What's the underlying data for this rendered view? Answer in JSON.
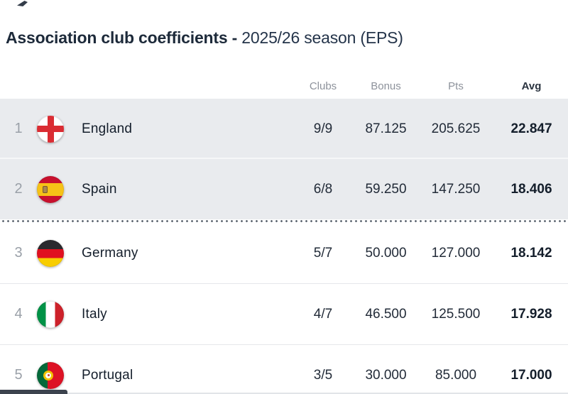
{
  "title": {
    "main": "Association club coefficients -",
    "season": "2025/26 season (EPS)"
  },
  "table": {
    "headers": [
      "Clubs",
      "Bonus",
      "Pts",
      "Avg"
    ],
    "rows": [
      {
        "rank": "1",
        "country": "England",
        "flag": "england-flag-icon",
        "clubs": "9/9",
        "bonus": "87.125",
        "pts": "205.625",
        "avg": "22.847",
        "highlighted": true
      },
      {
        "rank": "2",
        "country": "Spain",
        "flag": "spain-flag-icon",
        "clubs": "6/8",
        "bonus": "59.250",
        "pts": "147.250",
        "avg": "18.406",
        "highlighted": true
      },
      {
        "rank": "3",
        "country": "Germany",
        "flag": "germany-flag-icon",
        "clubs": "5/7",
        "bonus": "50.000",
        "pts": "127.000",
        "avg": "18.142",
        "highlighted": false
      },
      {
        "rank": "4",
        "country": "Italy",
        "flag": "italy-flag-icon",
        "clubs": "4/7",
        "bonus": "46.500",
        "pts": "125.500",
        "avg": "17.928",
        "highlighted": false
      },
      {
        "rank": "5",
        "country": "Portugal",
        "flag": "portugal-flag-icon",
        "clubs": "3/5",
        "bonus": "30.000",
        "pts": "85.000",
        "avg": "17.000",
        "highlighted": false
      }
    ],
    "cutoff_after_rank": "2"
  },
  "colors": {
    "title_text": "#1d2a3a",
    "header_text": "#8d929b",
    "row_text": "#19222f",
    "rank_text": "#9aa0a8",
    "highlight_bg": "#e9ebee",
    "dotted_line": "#5c6570",
    "separator": "#e5e7ea",
    "avg_text": "#141e2b"
  }
}
